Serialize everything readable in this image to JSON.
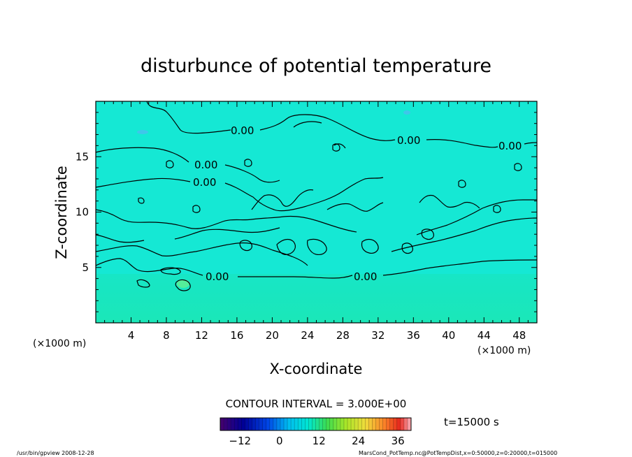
{
  "chart_data": {
    "type": "heatmap",
    "title": "disturbunce of potential temperature",
    "xlabel": "X-coordinate",
    "ylabel": "Z-coordinate",
    "x_unit": "(×1000 m)",
    "z_unit": "(×1000 m)",
    "xlim": [
      0,
      50
    ],
    "ylim": [
      0,
      20
    ],
    "x_ticks": [
      4,
      8,
      12,
      16,
      20,
      24,
      28,
      32,
      36,
      40,
      44,
      48
    ],
    "y_ticks": [
      5,
      10,
      15
    ],
    "contour_label": "0.00",
    "contour_interval_label": "CONTOUR INTERVAL = 3.000E+00",
    "time_label": "t=15000 s",
    "colorbar": {
      "min": -18,
      "max": 40,
      "ticks": [
        -12,
        0,
        12,
        24,
        36
      ]
    },
    "field_value": 0,
    "grid": false
  },
  "footer": {
    "left": "/usr/bin/gpview   2008-12-28",
    "right": "MarsCond_PotTemp.nc@PotTempDist,x=0:50000,z=0:20000,t=015000"
  },
  "colors": {
    "field": "#15e8d4",
    "field_lower": "#1ae6b9",
    "contour": "#000000"
  }
}
